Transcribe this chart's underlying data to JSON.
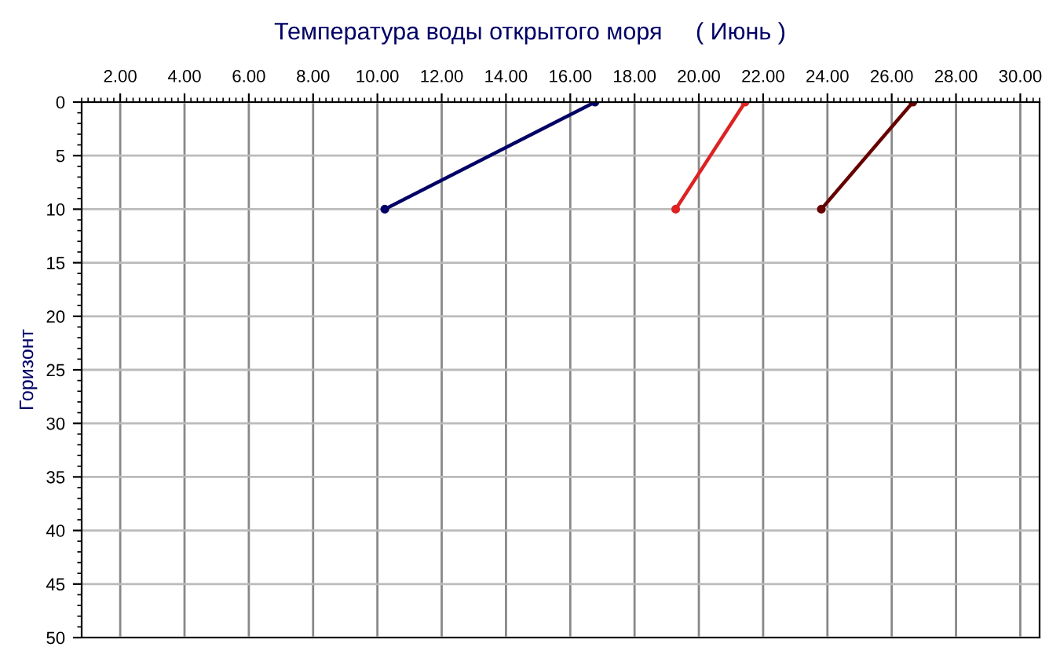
{
  "chart_data": {
    "type": "line",
    "title": "Температура воды открытого моря     ( Июнь )",
    "ylabel": "Горизонт",
    "series": [
      {
        "color": "#000066",
        "x": [
          16.77,
          10.23
        ],
        "values": [
          0,
          10
        ]
      },
      {
        "color": "#dd2222",
        "x": [
          21.44,
          19.28
        ],
        "values": [
          0,
          10
        ]
      },
      {
        "color": "#660000",
        "x": [
          26.66,
          23.81
        ],
        "values": [
          0,
          10
        ]
      }
    ],
    "xlim": [
      0.8,
      30.6
    ],
    "xticks": [
      {
        "value": 2,
        "label": "2.00"
      },
      {
        "value": 4,
        "label": "4.00"
      },
      {
        "value": 6,
        "label": "6.00"
      },
      {
        "value": 8,
        "label": "8.00"
      },
      {
        "value": 10,
        "label": "10.00"
      },
      {
        "value": 12,
        "label": "12.00"
      },
      {
        "value": 14,
        "label": "14.00"
      },
      {
        "value": 16,
        "label": "16.00"
      },
      {
        "value": 18,
        "label": "18.00"
      },
      {
        "value": 20,
        "label": "20.00"
      },
      {
        "value": 22,
        "label": "22.00"
      },
      {
        "value": 24,
        "label": "24.00"
      },
      {
        "value": 26,
        "label": "26.00"
      },
      {
        "value": 28,
        "label": "28.00"
      },
      {
        "value": 30,
        "label": "30.00"
      }
    ],
    "ylim": [
      50,
      0
    ],
    "yticks": [
      0,
      5,
      10,
      15,
      20,
      25,
      30,
      35,
      40,
      45,
      50
    ],
    "grid": true,
    "marker": "circle",
    "line_style": "solid"
  }
}
